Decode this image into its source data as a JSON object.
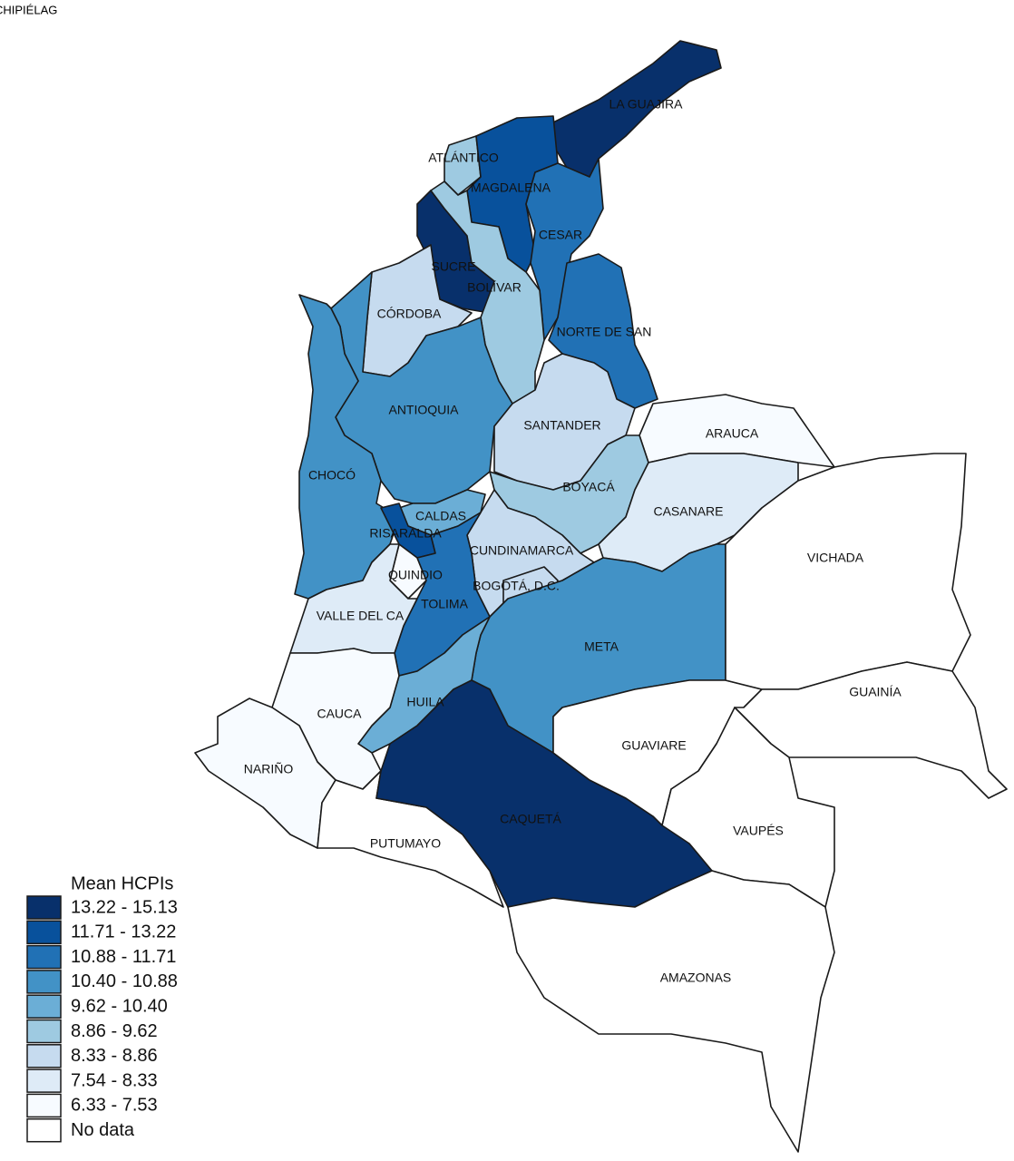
{
  "map": {
    "corner_label": "CHIPIÉLAG",
    "regions": [
      {
        "name": "LA GUAJIRA",
        "color": "#08306b"
      },
      {
        "name": "ATLÁNTICO",
        "color": "#9ecae1"
      },
      {
        "name": "MAGDALENA",
        "color": "#08519c"
      },
      {
        "name": "CESAR",
        "color": "#2171b5"
      },
      {
        "name": "SUCRE",
        "color": "#08306b"
      },
      {
        "name": "BOLÍVAR",
        "color": "#9ecae1"
      },
      {
        "name": "CÓRDOBA",
        "color": "#c6dbef"
      },
      {
        "name": "NORTE DE SAN",
        "color": "#2171b5"
      },
      {
        "name": "ANTIOQUIA",
        "color": "#4292c6"
      },
      {
        "name": "SANTANDER",
        "color": "#c6dbef"
      },
      {
        "name": "ARAUCA",
        "color": "#f7fbff"
      },
      {
        "name": "CHOCÓ",
        "color": "#4292c6"
      },
      {
        "name": "BOYACÁ",
        "color": "#9ecae1"
      },
      {
        "name": "CASANARE",
        "color": "#deebf7"
      },
      {
        "name": "CALDAS",
        "color": "#6baed6"
      },
      {
        "name": "RISARALDA",
        "color": "#08519c"
      },
      {
        "name": "CUNDINAMARCA",
        "color": "#c6dbef"
      },
      {
        "name": "BOGOTÁ, D.C.",
        "color": "#c6dbef"
      },
      {
        "name": "QUINDIO",
        "color": "#f7fbff"
      },
      {
        "name": "TOLIMA",
        "color": "#2171b5"
      },
      {
        "name": "VALLE DEL CA",
        "color": "#deebf7"
      },
      {
        "name": "META",
        "color": "#4292c6"
      },
      {
        "name": "HUILA",
        "color": "#6baed6"
      },
      {
        "name": "CAUCA",
        "color": "#f7fbff"
      },
      {
        "name": "NARIÑO",
        "color": "#f7fbff"
      },
      {
        "name": "PUTUMAYO",
        "color": "#ffffff"
      },
      {
        "name": "CAQUETÁ",
        "color": "#08306b"
      },
      {
        "name": "GUAVIARE",
        "color": "#ffffff"
      },
      {
        "name": "VICHADA",
        "color": "#ffffff"
      },
      {
        "name": "GUAINÍA",
        "color": "#ffffff"
      },
      {
        "name": "VAUPÉS",
        "color": "#ffffff"
      },
      {
        "name": "AMAZONAS",
        "color": "#ffffff"
      }
    ],
    "legend": {
      "title": "Mean HCPIs",
      "items": [
        {
          "label": "13.22 - 15.13",
          "color": "#08306b"
        },
        {
          "label": "11.71 - 13.22",
          "color": "#08519c"
        },
        {
          "label": "10.88 - 11.71",
          "color": "#2171b5"
        },
        {
          "label": "10.40 - 10.88",
          "color": "#4292c6"
        },
        {
          "label": "9.62 - 10.40",
          "color": "#6baed6"
        },
        {
          "label": "8.86 - 9.62",
          "color": "#9ecae1"
        },
        {
          "label": "8.33 - 8.86",
          "color": "#c6dbef"
        },
        {
          "label": "7.54 - 8.33",
          "color": "#deebf7"
        },
        {
          "label": "6.33 - 7.53",
          "color": "#f7fbff"
        },
        {
          "label": "No data",
          "color": "#ffffff"
        }
      ]
    }
  }
}
